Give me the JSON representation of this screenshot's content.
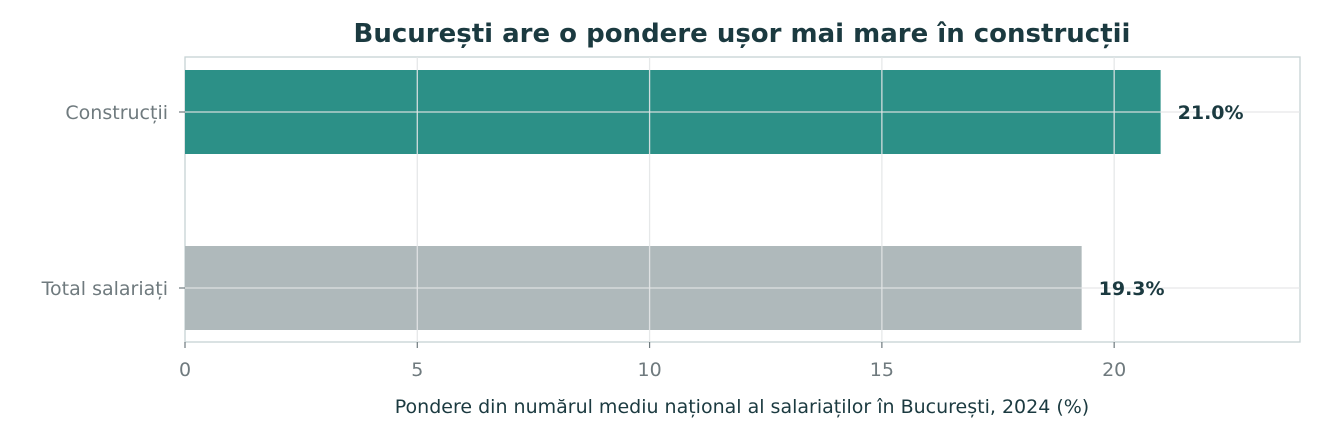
{
  "chart_data": {
    "type": "bar",
    "orientation": "horizontal",
    "title": "București are o pondere ușor mai mare în construcții",
    "xlabel": "Pondere din numărul mediu național al salariaților în București, 2024 (%)",
    "ylabel": "",
    "categories": [
      "Construcții",
      "Total salariați"
    ],
    "values": [
      21.0,
      19.3
    ],
    "value_labels": [
      "21.0%",
      "19.3%"
    ],
    "bar_colors": [
      "#2c9087",
      "#afb9bb"
    ],
    "xlim": [
      0,
      24
    ],
    "xticks": [
      0,
      5,
      10,
      15,
      20
    ],
    "xtick_labels": [
      "0",
      "5",
      "10",
      "15",
      "20"
    ],
    "grid": true,
    "legend": "none"
  },
  "colors": {
    "title": "#1b3a40",
    "tick_text": "#6f7a7e",
    "grid": "#e3e6e7",
    "frame": "#c6d2d4"
  }
}
